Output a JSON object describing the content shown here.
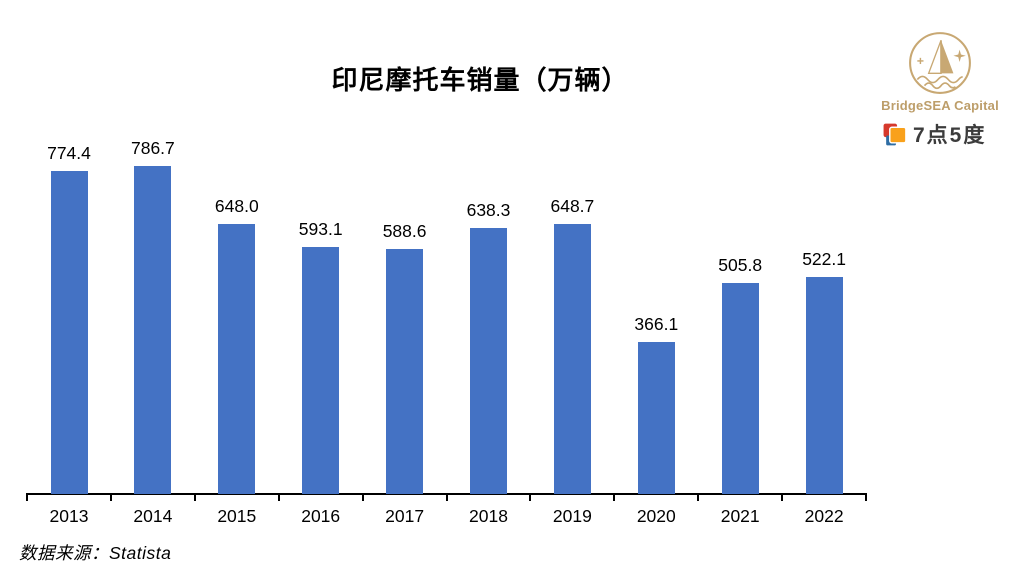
{
  "header": {
    "brand": {
      "name": "BridgeSEA Capital",
      "sub_brand": "7点5度",
      "logo_color": "#C8A873",
      "sub_brand_text_color": "#3C3C3C",
      "sub_brand_icon_colors": {
        "red": "#D6392C",
        "orange": "#F9A11B",
        "blue": "#2E6DA4"
      }
    }
  },
  "source_note": "数据来源：Statista",
  "chart_data": {
    "type": "bar",
    "title": "印尼摩托车销量（万辆）",
    "categories": [
      "2013",
      "2014",
      "2015",
      "2016",
      "2017",
      "2018",
      "2019",
      "2020",
      "2021",
      "2022"
    ],
    "values": [
      774.4,
      786.7,
      648.0,
      593.1,
      588.6,
      638.3,
      648.7,
      366.1,
      505.8,
      522.1
    ],
    "series_name": "印尼摩托车销量",
    "xlabel": "",
    "ylabel": "",
    "ylim": [
      0,
      850
    ],
    "bar_color": "#4472C4",
    "data_labels_visible": true,
    "label_decimals": 1,
    "grid": false,
    "legend_position": "none",
    "y_axis_visible": false
  }
}
